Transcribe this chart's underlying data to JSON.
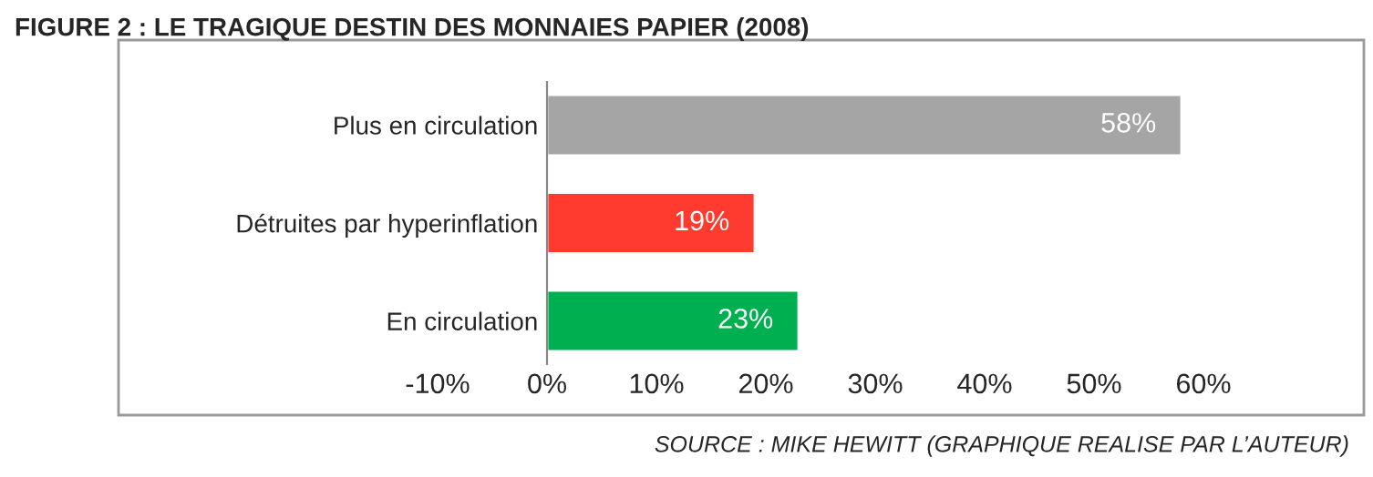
{
  "chart_data": {
    "type": "bar",
    "orientation": "horizontal",
    "title": "FIGURE 2 : LE TRAGIQUE DESTIN DES MONNAIES PAPIER (2008)",
    "categories": [
      "Plus en circulation",
      "Détruites par hyperinflation",
      "En circulation"
    ],
    "values": [
      58,
      19,
      23
    ],
    "colors": [
      "#a5a5a5",
      "#ff3b30",
      "#00b050"
    ],
    "value_labels": [
      "58%",
      "19%",
      "23%"
    ],
    "xlim": [
      -10,
      60
    ],
    "xticks": [
      {
        "value": -10,
        "label": "-10%"
      },
      {
        "value": 0,
        "label": "0%"
      },
      {
        "value": 10,
        "label": "10%"
      },
      {
        "value": 20,
        "label": "20%"
      },
      {
        "value": 30,
        "label": "30%"
      },
      {
        "value": 40,
        "label": "40%"
      },
      {
        "value": 50,
        "label": "50%"
      },
      {
        "value": 60,
        "label": "60%"
      }
    ],
    "grid": false,
    "legend": false,
    "annotations": [
      "SOURCE : MIKE HEWITT (GRAPHIQUE REALISE PAR L’AUTEUR)"
    ]
  }
}
